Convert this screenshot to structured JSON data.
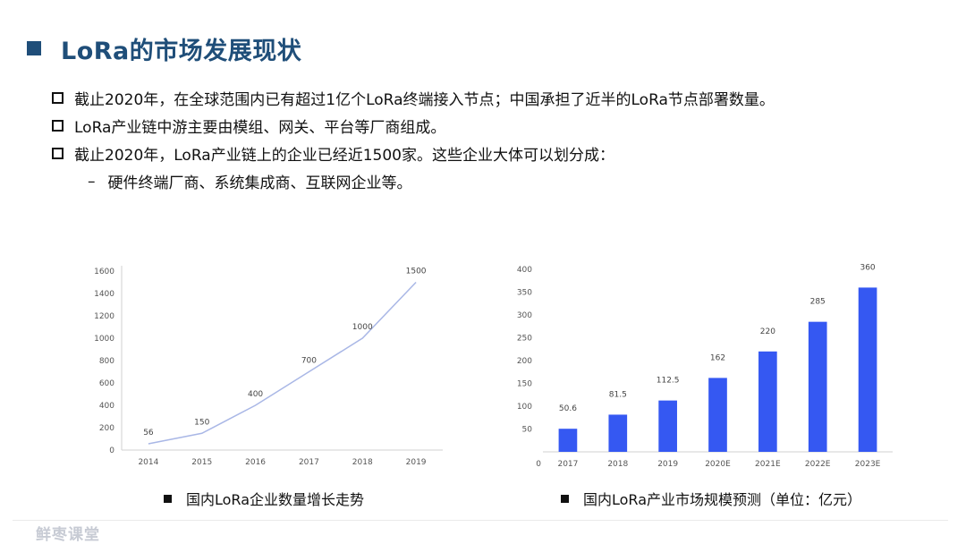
{
  "title": "LoRa的市场发展现状",
  "bullets": [
    "截止2020年，在全球范围内已有超过1亿个LoRa终端接入节点；中国承担了近半的LoRa节点部署数量。",
    "LoRa产业链中游主要由模组、网关、平台等厂商组成。",
    "截止2020年，LoRa产业链上的企业已经近1500家。这些企业大体可以划分成："
  ],
  "sub_bullet": {
    "dash": "–",
    "text": "硬件终端厂商、系统集成商、互联网企业等。"
  },
  "chart_data": [
    {
      "type": "line",
      "categories": [
        "2014",
        "2015",
        "2016",
        "2017",
        "2018",
        "2019"
      ],
      "values": [
        56,
        150,
        400,
        700,
        1000,
        1500
      ],
      "data_labels": [
        "56",
        "150",
        "400",
        "700",
        "1000",
        "1500"
      ],
      "ylim": [
        0,
        1600
      ],
      "yticks": [
        "0",
        "200",
        "400",
        "600",
        "800",
        "1000",
        "1200",
        "1400",
        "1600"
      ],
      "grid": false,
      "line_color": "#a9b7e6",
      "caption": "国内LoRa企业数量增长走势"
    },
    {
      "type": "bar",
      "categories": [
        "2017",
        "2018",
        "2019",
        "2020E",
        "2021E",
        "2022E",
        "2023E"
      ],
      "values": [
        50.6,
        81.5,
        112.5,
        162,
        220,
        285,
        360
      ],
      "data_labels": [
        "50.6",
        "81.5",
        "112.5",
        "162",
        "220",
        "285",
        "360"
      ],
      "ylim": [
        0,
        400
      ],
      "yticks": [
        "0",
        "50",
        "100",
        "150",
        "200",
        "250",
        "300",
        "350",
        "400"
      ],
      "grid": false,
      "bar_color": "#3558f2",
      "caption": "国内LoRa产业市场规模预测（单位：亿元）"
    }
  ],
  "watermark": "鲜枣课堂"
}
